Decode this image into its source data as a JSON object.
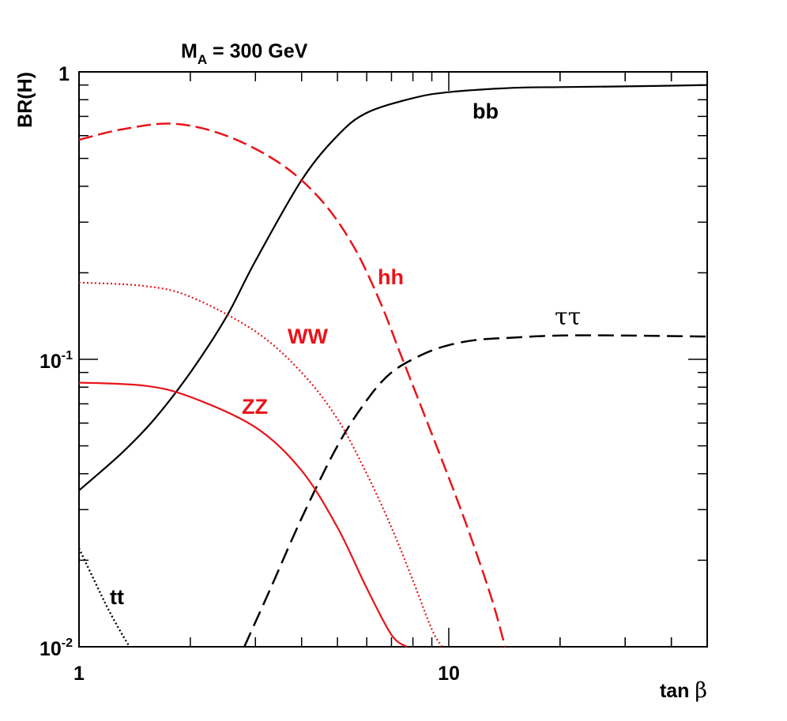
{
  "chart_data": {
    "type": "line",
    "title": "M",
    "title_subscript": "A",
    "title_suffix": " = 300 GeV",
    "xlabel": "tan ",
    "xlabel_symbol": "β",
    "ylabel": "BR(H)",
    "x_scale": "log",
    "y_scale": "log",
    "xlim": [
      1,
      50
    ],
    "ylim": [
      0.01,
      1
    ],
    "x_tick_labels": [
      "1",
      "10"
    ],
    "y_tick_labels": [
      {
        "base": "1",
        "exp": ""
      },
      {
        "base": "10",
        "exp": "-1"
      },
      {
        "base": "10",
        "exp": "-2"
      }
    ],
    "series": [
      {
        "name": "bb",
        "color": "#000000",
        "style": "solid",
        "x": [
          1,
          1.3,
          1.6,
          2.0,
          2.5,
          3.0,
          4.0,
          5.0,
          6.0,
          8.0,
          10,
          15,
          20,
          30,
          50
        ],
        "y": [
          0.035,
          0.047,
          0.062,
          0.09,
          0.14,
          0.22,
          0.42,
          0.6,
          0.72,
          0.81,
          0.85,
          0.88,
          0.885,
          0.89,
          0.9
        ]
      },
      {
        "name": "hh",
        "color": "#e8141a",
        "style": "dashed",
        "x": [
          1,
          1.3,
          1.8,
          2.5,
          3.5,
          4.5,
          5.5,
          6.5,
          7.5,
          9,
          11,
          13,
          14.2
        ],
        "y": [
          0.58,
          0.63,
          0.66,
          0.6,
          0.48,
          0.36,
          0.25,
          0.16,
          0.1,
          0.055,
          0.028,
          0.015,
          0.01
        ]
      },
      {
        "name": "ττ",
        "color": "#000000",
        "style": "longdash",
        "x": [
          2.8,
          3.3,
          4.0,
          5.0,
          6.0,
          7.0,
          8.5,
          10,
          12,
          15,
          20,
          30,
          50
        ],
        "y": [
          0.01,
          0.016,
          0.028,
          0.05,
          0.072,
          0.09,
          0.104,
          0.112,
          0.117,
          0.119,
          0.121,
          0.121,
          0.12
        ]
      },
      {
        "name": "WW",
        "color": "#e8141a",
        "style": "dotted",
        "x": [
          1,
          1.5,
          2.0,
          3.0,
          4.0,
          5.0,
          6.0,
          7.0,
          8.0,
          9.0,
          9.6
        ],
        "y": [
          0.185,
          0.18,
          0.165,
          0.125,
          0.09,
          0.062,
          0.04,
          0.026,
          0.017,
          0.0115,
          0.01
        ]
      },
      {
        "name": "ZZ",
        "color": "#e8141a",
        "style": "solid",
        "x": [
          1,
          1.5,
          2.0,
          3.0,
          4.0,
          5.0,
          6.0,
          7.0,
          7.7
        ],
        "y": [
          0.083,
          0.081,
          0.074,
          0.058,
          0.041,
          0.026,
          0.016,
          0.011,
          0.01
        ]
      },
      {
        "name": "tt",
        "color": "#000000",
        "style": "dotted2",
        "x": [
          1,
          1.1,
          1.2,
          1.3,
          1.37
        ],
        "y": [
          0.022,
          0.017,
          0.0135,
          0.0112,
          0.01
        ]
      }
    ],
    "annotations": [
      {
        "text": "bb",
        "series": "bb",
        "color": "#000000"
      },
      {
        "text": "hh",
        "series": "hh",
        "color": "#e8141a"
      },
      {
        "text": "ττ",
        "series": "ττ",
        "color": "#000000"
      },
      {
        "text": "WW",
        "series": "WW",
        "color": "#e8141a"
      },
      {
        "text": "ZZ",
        "series": "ZZ",
        "color": "#e8141a"
      },
      {
        "text": "tt",
        "series": "tt",
        "color": "#000000"
      }
    ]
  }
}
